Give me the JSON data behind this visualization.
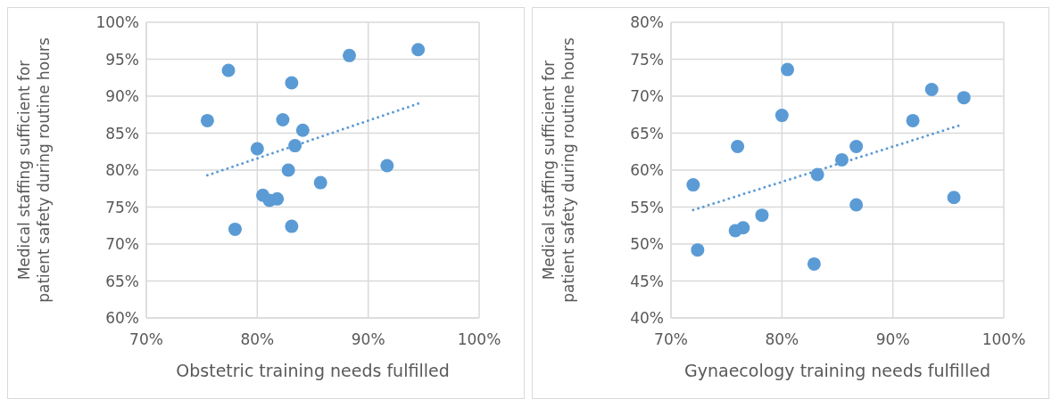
{
  "chart_data": [
    {
      "type": "scatter",
      "xlabel": "Obstetric training needs fulfilled",
      "ylabel": "Medical staffing sufficient for patient safety during routine hours",
      "xlim": [
        70,
        100
      ],
      "xticks": [
        {
          "value": 70,
          "label": "70%"
        },
        {
          "value": 80,
          "label": "80%"
        },
        {
          "value": 90,
          "label": "90%"
        },
        {
          "value": 100,
          "label": "100%"
        }
      ],
      "ylim": [
        60,
        100
      ],
      "yticks": [
        {
          "value": 60,
          "label": "60%"
        },
        {
          "value": 65,
          "label": "65%"
        },
        {
          "value": 70,
          "label": "70%"
        },
        {
          "value": 75,
          "label": "75%"
        },
        {
          "value": 80,
          "label": "80%"
        },
        {
          "value": 85,
          "label": "85%"
        },
        {
          "value": 90,
          "label": "90%"
        },
        {
          "value": 95,
          "label": "95%"
        },
        {
          "value": 100,
          "label": "100%"
        }
      ],
      "grid": true,
      "legend": false,
      "marker": "circle",
      "series": [
        {
          "type": "scatter",
          "color": "#5b9bd5",
          "x": [
            77.4,
            75.5,
            88.3,
            94.5,
            83.1,
            82.3,
            84.1,
            80.0,
            83.4,
            82.8,
            91.7,
            85.7,
            80.5,
            81.1,
            81.8,
            78.0,
            83.1
          ],
          "values": [
            93.5,
            86.7,
            95.5,
            96.3,
            91.8,
            86.8,
            85.4,
            82.9,
            83.3,
            80.0,
            80.6,
            78.3,
            76.6,
            75.9,
            76.1,
            72.0,
            72.4
          ]
        },
        {
          "type": "line",
          "color": "#5b9bd5",
          "line_style": "dotted",
          "marker": "none",
          "x": [
            75.5,
            94.5
          ],
          "values": [
            79.3,
            89.0
          ]
        }
      ]
    },
    {
      "type": "scatter",
      "xlabel": "Gynaecology training needs fulfilled",
      "ylabel": "Medical staffing sufficient for patient safety during routine hours",
      "xlim": [
        70,
        100
      ],
      "xticks": [
        {
          "value": 70,
          "label": "70%"
        },
        {
          "value": 80,
          "label": "80%"
        },
        {
          "value": 90,
          "label": "90%"
        },
        {
          "value": 100,
          "label": "100%"
        }
      ],
      "ylim": [
        40,
        80
      ],
      "yticks": [
        {
          "value": 40,
          "label": "40%"
        },
        {
          "value": 45,
          "label": "45%"
        },
        {
          "value": 50,
          "label": "50%"
        },
        {
          "value": 55,
          "label": "55%"
        },
        {
          "value": 60,
          "label": "60%"
        },
        {
          "value": 65,
          "label": "65%"
        },
        {
          "value": 70,
          "label": "70%"
        },
        {
          "value": 75,
          "label": "75%"
        },
        {
          "value": 80,
          "label": "80%"
        }
      ],
      "grid": true,
      "legend": false,
      "marker": "circle",
      "series": [
        {
          "type": "scatter",
          "color": "#5b9bd5",
          "x": [
            72.0,
            72.4,
            76.0,
            75.8,
            76.5,
            78.2,
            80.0,
            80.5,
            83.2,
            82.9,
            85.4,
            86.7,
            86.7,
            91.8,
            93.5,
            96.4,
            95.5
          ],
          "values": [
            58.0,
            49.2,
            63.2,
            51.8,
            52.2,
            53.9,
            67.4,
            73.6,
            59.4,
            47.3,
            61.4,
            63.2,
            55.3,
            66.7,
            70.9,
            69.8,
            56.3
          ]
        },
        {
          "type": "line",
          "color": "#5b9bd5",
          "line_style": "dotted",
          "marker": "none",
          "x": [
            72.0,
            95.9
          ],
          "values": [
            54.6,
            66.0
          ]
        }
      ]
    }
  ]
}
